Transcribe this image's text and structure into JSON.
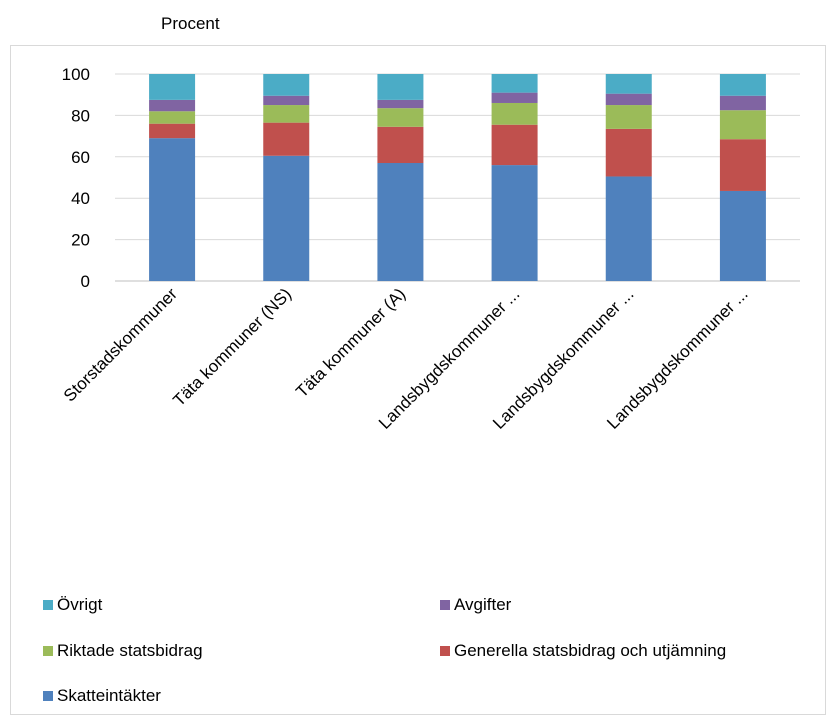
{
  "chart_data": {
    "type": "bar",
    "stacked": true,
    "title": "",
    "unit_label": "Procent",
    "xlabel": "",
    "ylabel": "",
    "ylim": [
      0,
      100
    ],
    "yticks": [
      0,
      20,
      40,
      60,
      80,
      100
    ],
    "grid": true,
    "legend_position": "bottom",
    "categories": [
      "Storstadskommuner",
      "Täta kommuner (NS)",
      "Täta kommuner (A)",
      "Landsbygdskommuner ...",
      "Landsbygdskommuner ...",
      "Landsbygdskommuner ..."
    ],
    "series": [
      {
        "name": "Skatteintäkter",
        "color": "#4f81bd",
        "values": [
          69,
          60.5,
          57,
          56,
          50.5,
          43.5
        ]
      },
      {
        "name": "Generella statsbidrag och utjämning",
        "color": "#c0504d",
        "values": [
          7,
          16,
          17.5,
          19.5,
          23,
          25
        ]
      },
      {
        "name": "Riktade statsbidrag",
        "color": "#9bbb59",
        "values": [
          6,
          8.5,
          9,
          10.5,
          11.5,
          14
        ]
      },
      {
        "name": "Avgifter",
        "color": "#8064a2",
        "values": [
          5.5,
          4.5,
          4,
          5,
          5.5,
          7
        ]
      },
      {
        "name": "Övrigt",
        "color": "#4bacc6",
        "values": [
          12.5,
          10.5,
          12.5,
          9,
          9.5,
          10.5
        ]
      }
    ],
    "legend_order": [
      "Övrigt",
      "Avgifter",
      "Riktade statsbidrag",
      "Generella statsbidrag och utjämning",
      "Skatteintäkter"
    ]
  }
}
